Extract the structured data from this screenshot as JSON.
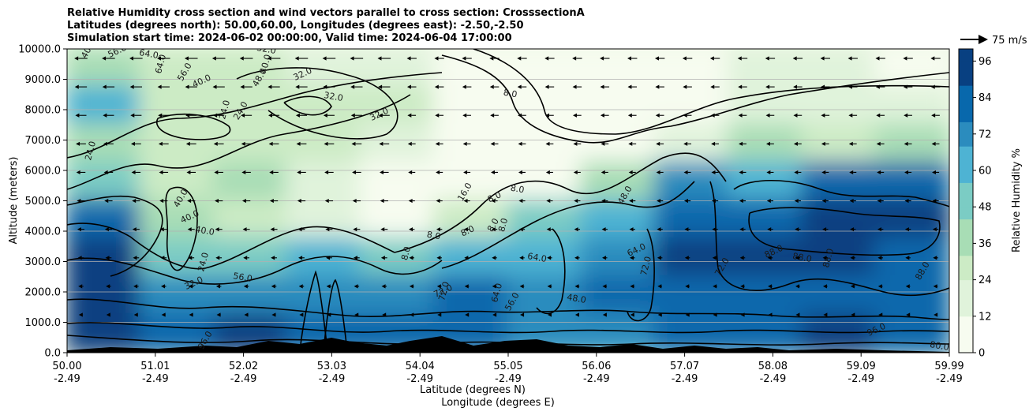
{
  "chart_data": {
    "type": "heatmap",
    "title_lines": [
      "Relative Humidity cross section and wind vectors parallel to cross section: CrosssectionA",
      "Latitudes (degrees north): 50.00,60.00, Longitudes (degrees east): -2.50,-2.50",
      "Simulation start time: 2024-06-02 00:00:00, Valid time: 2024-06-04 17:00:00"
    ],
    "ylabel": "Altitude (meters)",
    "xlabel_lat": "Latitude (degrees N)",
    "xlabel_lon": "Longitude (degrees E)",
    "ylim": [
      0,
      10000
    ],
    "xlim": [
      50.0,
      59.99
    ],
    "y_ticks": [
      "0.0",
      "1000.0",
      "2000.0",
      "3000.0",
      "4000.0",
      "5000.0",
      "6000.0",
      "7000.0",
      "8000.0",
      "9000.0",
      "10000.0"
    ],
    "x_ticks_lat": [
      "50.00",
      "51.01",
      "52.02",
      "53.03",
      "54.04",
      "55.05",
      "56.06",
      "57.07",
      "58.08",
      "59.09",
      "59.99"
    ],
    "x_ticks_lon": [
      "-2.49",
      "-2.49",
      "-2.49",
      "-2.49",
      "-2.49",
      "-2.49",
      "-2.49",
      "-2.49",
      "-2.49",
      "-2.49",
      "-2.49"
    ],
    "grid": "horizontal",
    "colorbar": {
      "label": "Relative Humidity %",
      "ticks": [
        "0",
        "12",
        "24",
        "36",
        "48",
        "60",
        "72",
        "84",
        "96"
      ],
      "range": [
        0,
        100
      ],
      "colors": [
        "#f7fcf0",
        "#e0f3db",
        "#ccebc5",
        "#a8ddb5",
        "#7bccc4",
        "#4eb3d3",
        "#2b8cbe",
        "#0868ac",
        "#084081"
      ]
    },
    "quiver_key": "75 m/s",
    "contour_labels": [
      "40.0",
      "56.0",
      "64.0",
      "64.0",
      "56.0",
      "40.0",
      "32.0",
      "40.0",
      "48.0",
      "32.0",
      "32.0",
      "24.0",
      "24.0",
      "32.0",
      "8.0",
      "24.0",
      "40.0",
      "40.0",
      "40.0",
      "24.0",
      "16.0",
      "8.0",
      "8.0",
      "8.0",
      "8.0",
      "8.0",
      "8.0",
      "8.0",
      "48.0",
      "64.0",
      "64.0",
      "72.0",
      "72.0",
      "88.0",
      "88.0",
      "88.0",
      "88.0",
      "72.0",
      "48.0",
      "64.0",
      "56.0",
      "32.0",
      "56.0",
      "72.0",
      "96.0",
      "96.0",
      "80.0"
    ],
    "rh_field_rows": [
      [
        40,
        30,
        28,
        20,
        15,
        8,
        5,
        5,
        5,
        15,
        15,
        8
      ],
      [
        60,
        30,
        24,
        24,
        30,
        8,
        5,
        5,
        8,
        15,
        20,
        15
      ],
      [
        40,
        24,
        30,
        24,
        16,
        8,
        5,
        6,
        20,
        40,
        30,
        35
      ],
      [
        50,
        28,
        35,
        20,
        10,
        8,
        10,
        40,
        70,
        60,
        80,
        85
      ],
      [
        88,
        35,
        30,
        20,
        10,
        30,
        50,
        65,
        80,
        88,
        92,
        90
      ],
      [
        95,
        50,
        55,
        60,
        55,
        60,
        60,
        70,
        90,
        92,
        90,
        85
      ],
      [
        96,
        70,
        75,
        70,
        75,
        80,
        75,
        80,
        88,
        85,
        88,
        80
      ],
      [
        95,
        85,
        90,
        85,
        80,
        80,
        75,
        72,
        82,
        84,
        92,
        88
      ]
    ]
  }
}
